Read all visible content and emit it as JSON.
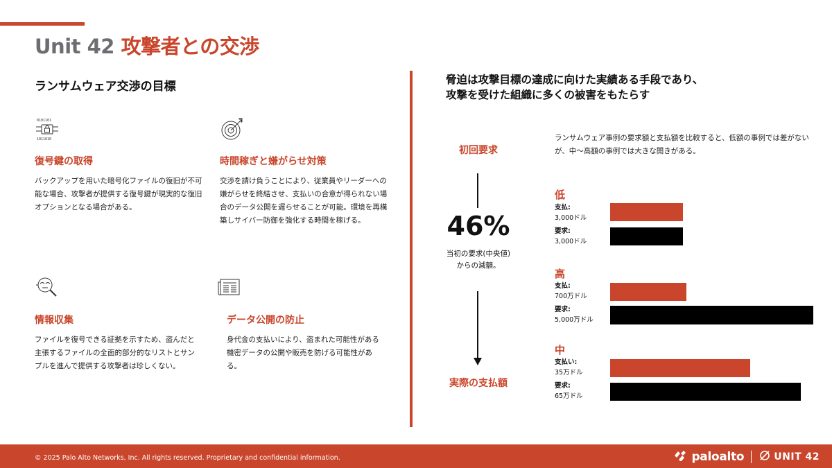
{
  "header": {
    "title_unit": "Unit 42",
    "title_main": "攻撃者との交渉"
  },
  "left": {
    "heading": "ランサムウェア交渉の目標",
    "goals": [
      {
        "icon": "encrypted-chip-icon",
        "title": "復号鍵の取得",
        "body": "バックアップを用いた暗号化ファイルの復旧が不可能な場合、攻撃者が提供する復号鍵が現実的な復旧オプションとなる場合がある。"
      },
      {
        "icon": "target-icon",
        "title": "時間稼ぎと嫌がらせ対策",
        "body": "交渉を請け負うことにより、従業員やリーダーへの嫌がらせを終結させ、支払いの合意が得られない場合のデータ公開を遅らせることが可能。環境を再構築しサイバー防御を強化する時間を稼げる。"
      },
      {
        "icon": "investigation-icon",
        "title": "情報収集",
        "body": "ファイルを復号できる証拠を示すため、盗んだと主張するファイルの全面的部分的なリストとサンプルを進んで提供する攻撃者は珍しくない。"
      },
      {
        "icon": "newspaper-icon",
        "title": "データ公開の防止",
        "body": "身代金の支払いにより、盗まれた可能性がある機密データの公開や販売を防げる可能性がある。"
      }
    ]
  },
  "right": {
    "heading_line1": "脅迫は攻撃目標の達成に向けた実績ある手段であり、",
    "heading_line2": "攻撃を受けた組織に多くの被害をもたらす",
    "flow": {
      "first_demand": "初回要求",
      "percent": "46%",
      "caption_line1": "当初の要求(中央値)",
      "caption_line2": "からの減額。",
      "actual_payment": "実際の支払額"
    },
    "compare_desc": "ランサムウェア事例の要求額と支払額を比較すると、低額の事例では差がないが、中～高額の事例では大きな開きがある。",
    "groups": [
      {
        "title": "低",
        "pay_label": "支払:",
        "pay_value": "3,000ドル",
        "demand_label": "要求:",
        "demand_value": "3,000ドル",
        "pay_amount": 3000,
        "demand_amount": 3000
      },
      {
        "title": "高",
        "pay_label": "支払:",
        "pay_value": "700万ドル",
        "demand_label": "要求:",
        "demand_value": "5,000万ドル",
        "pay_amount": 7000000,
        "demand_amount": 50000000
      },
      {
        "title": "中",
        "pay_label": "支払い:",
        "pay_value": "35万ドル",
        "demand_label": "要求:",
        "demand_value": "65万ドル",
        "pay_amount": 350000,
        "demand_amount": 650000
      }
    ]
  },
  "footer": {
    "copyright": "© 2025 Palo Alto Networks, Inc. All rights reserved. Proprietary and confidential information.",
    "brand_paloalto": "paloalto",
    "brand_unit42": "UNIT 42"
  },
  "colors": {
    "accent": "#c9452b",
    "gray": "#6d6e71",
    "black": "#000000"
  }
}
